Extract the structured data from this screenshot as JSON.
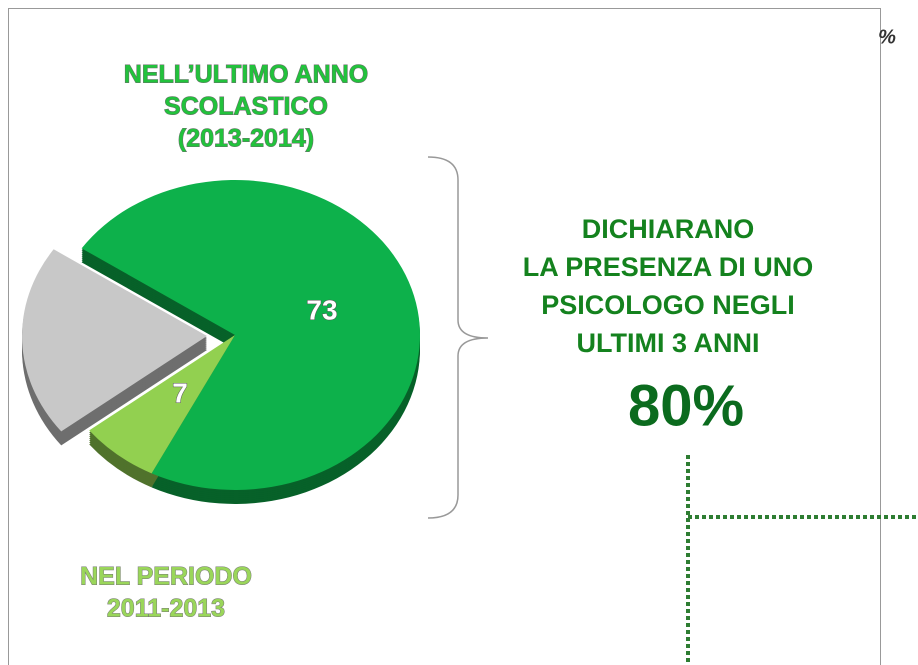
{
  "chart_data": {
    "type": "pie",
    "values": [
      73,
      7,
      20
    ],
    "colors": [
      "#0db14b",
      "#92d050",
      "#c8c8c8"
    ],
    "annotations": {
      "top": [
        "NELL’ULTIMO ANNO",
        "SCOLASTICO",
        "(2013-2014)"
      ],
      "bottom": [
        "NEL PERIODO",
        "2011-2013"
      ],
      "right": [
        "DICHIARANO",
        "LA PRESENZA DI UNO",
        "PSICOLOGO NEGLI",
        "ULTIMI 3 ANNI"
      ],
      "total": "80%",
      "corner": "%"
    }
  }
}
